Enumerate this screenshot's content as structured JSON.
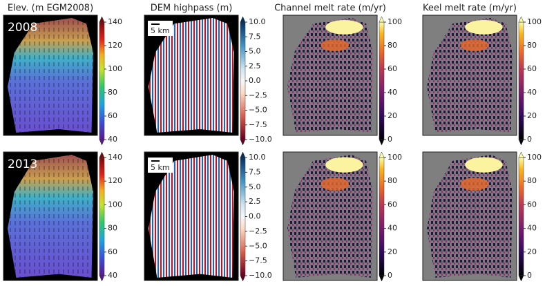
{
  "columns": [
    {
      "title": "Elev. (m EGM2008)",
      "cbar": {
        "lim": [
          40,
          140
        ],
        "ticks": [
          40,
          60,
          80,
          100,
          120,
          140
        ],
        "colormap": "rainbow"
      }
    },
    {
      "title": "DEM highpass (m)",
      "scale_bar": "5 km",
      "cbar": {
        "lim": [
          -10,
          10
        ],
        "ticks": [
          {
            "value": -10,
            "label": "−10.0"
          },
          {
            "value": -7.5,
            "label": "−7.5"
          },
          {
            "value": -5,
            "label": "−5.0"
          },
          {
            "value": -2.5,
            "label": "−2.5"
          },
          {
            "value": 0,
            "label": "0.0"
          },
          {
            "value": 2.5,
            "label": "2.5"
          },
          {
            "value": 5,
            "label": "5.0"
          },
          {
            "value": 7.5,
            "label": "7.5"
          },
          {
            "value": 10,
            "label": "10.0"
          }
        ],
        "colormap": "rdbu"
      }
    },
    {
      "title": "Channel melt rate (m/yr)",
      "cbar": {
        "lim": [
          0,
          100
        ],
        "ticks": [
          0,
          20,
          40,
          60,
          80,
          100
        ],
        "colormap": "inferno"
      }
    },
    {
      "title": "Keel melt rate (m/yr)",
      "cbar": {
        "lim": [
          0,
          100
        ],
        "ticks": [
          0,
          20,
          40,
          60,
          80,
          100
        ],
        "colormap": "inferno"
      }
    }
  ],
  "rows": [
    {
      "year": "2008"
    },
    {
      "year": "2013"
    }
  ]
}
